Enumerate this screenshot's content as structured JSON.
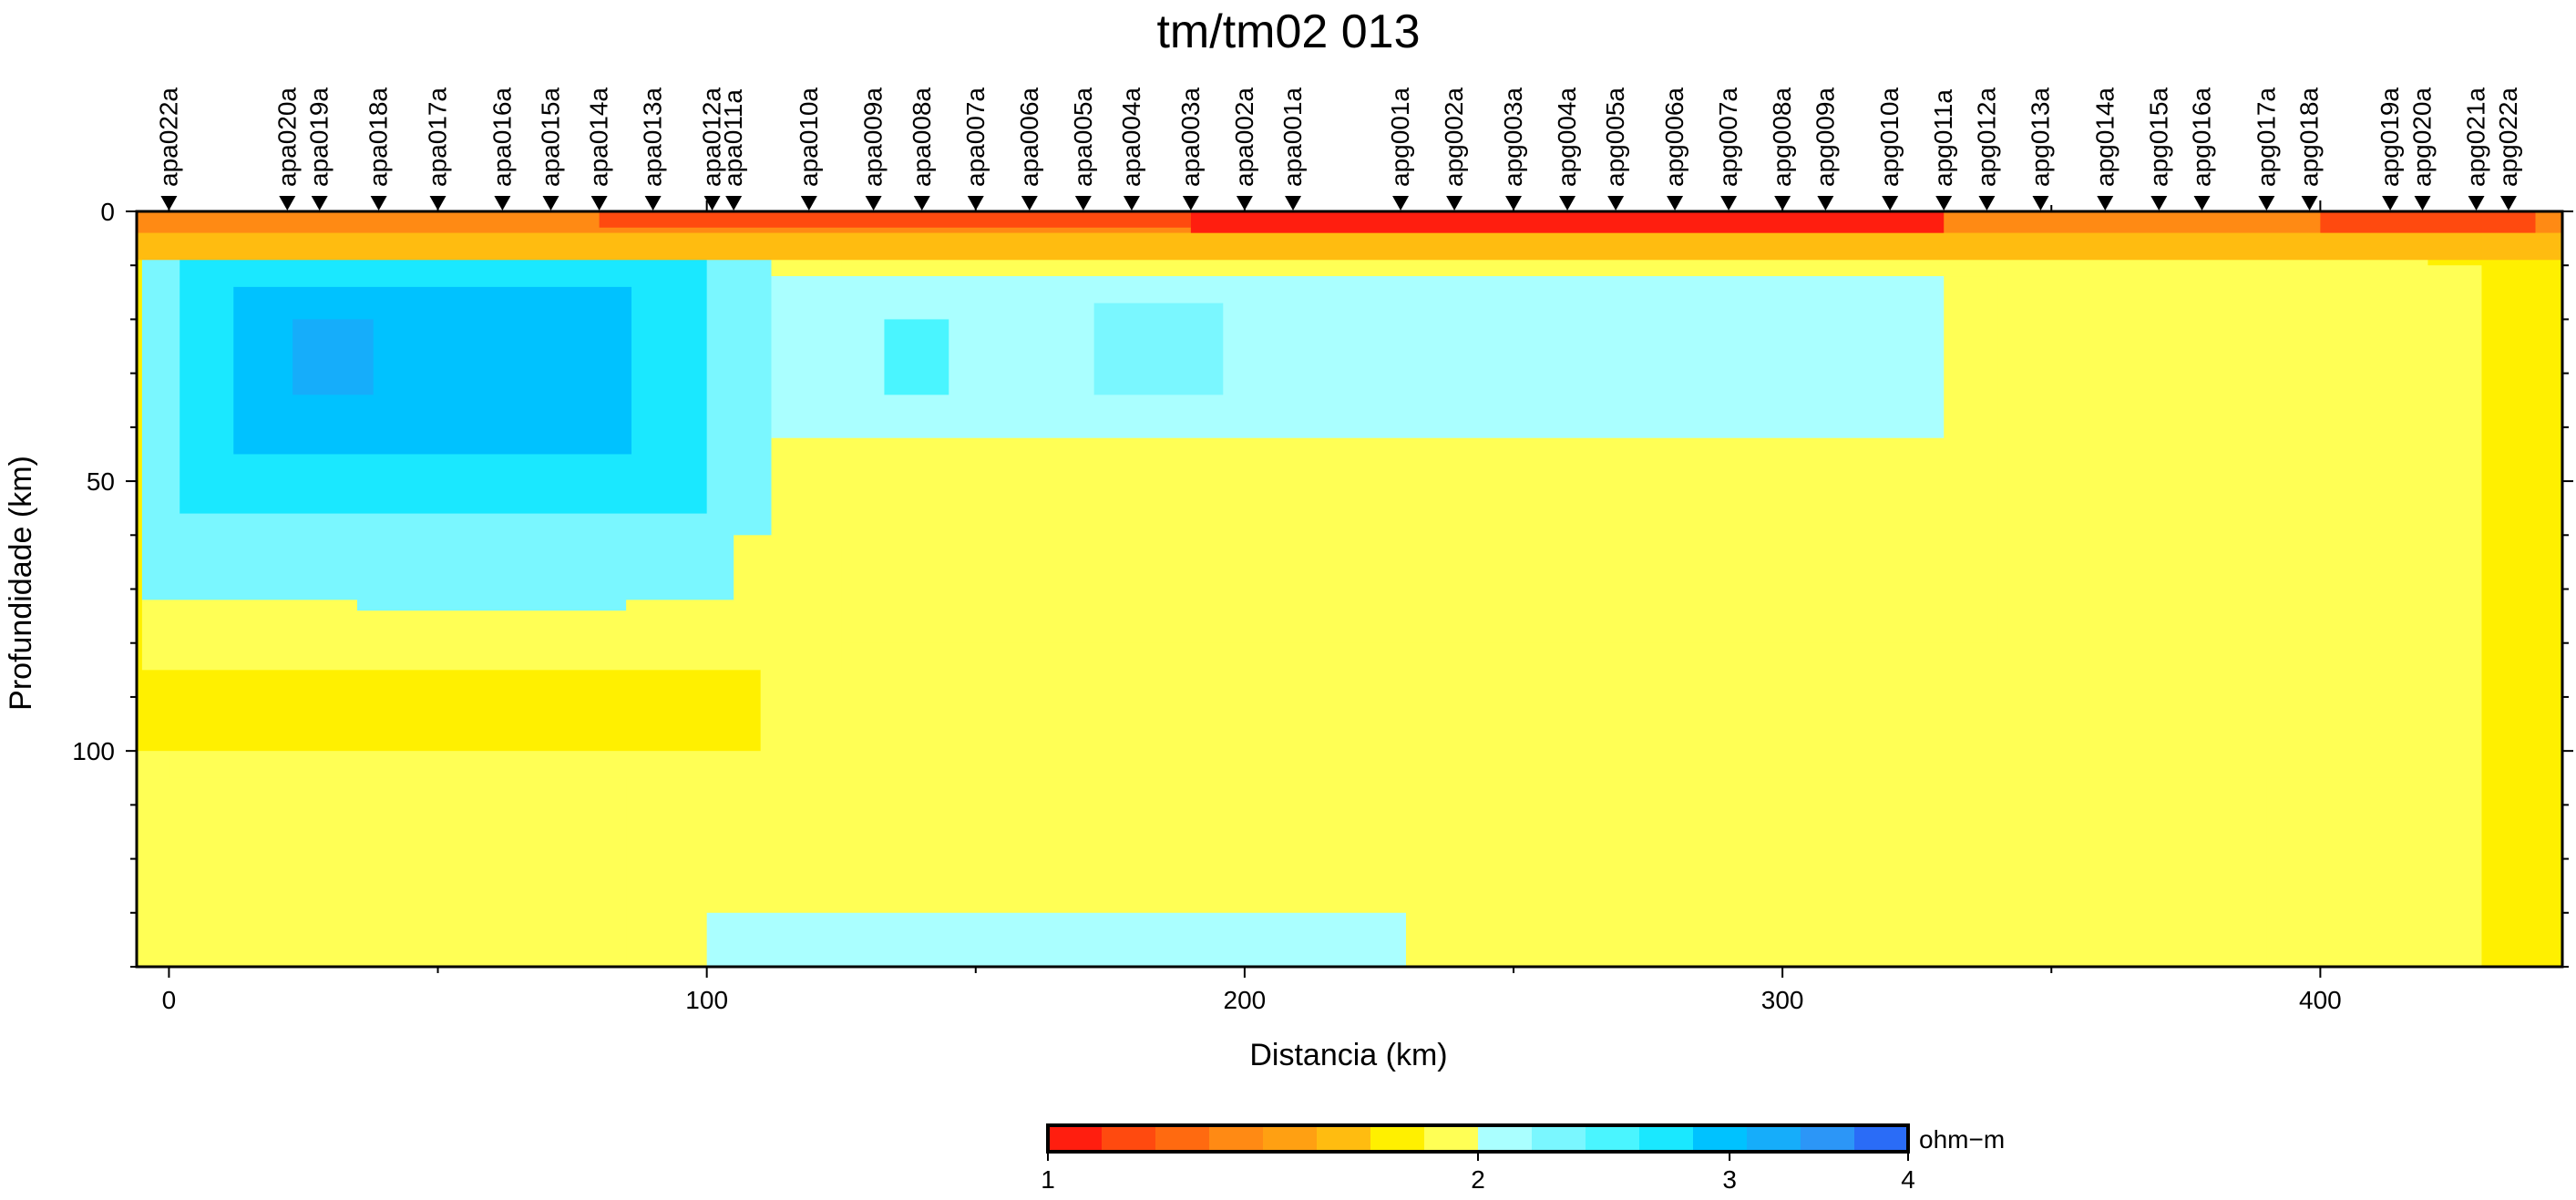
{
  "chart_data": {
    "type": "heatmap",
    "title": "tm/tm02 013",
    "xlabel": "Distancia (km)",
    "ylabel": "Profundidade (km)",
    "xlim": [
      -6,
      445
    ],
    "ylim": [
      140,
      0
    ],
    "x_ticks": [
      0,
      100,
      200,
      300,
      400
    ],
    "y_ticks": [
      0,
      50,
      100
    ],
    "colorbar": {
      "unit": "ohm−m",
      "range": [
        1,
        4
      ],
      "ticks": [
        1,
        2,
        3,
        4
      ],
      "colors": [
        "#ff1e0f",
        "#ff4a0f",
        "#ff6a10",
        "#ff8a14",
        "#ffa012",
        "#ffbc10",
        "#fff000",
        "#ffff55",
        "#aaffff",
        "#7af7ff",
        "#4af5ff",
        "#1ae8ff",
        "#00c2ff",
        "#16adfa",
        "#2c96f7",
        "#2a6cf7"
      ]
    },
    "stations": [
      {
        "name": "apa022a",
        "x": 0
      },
      {
        "name": "apa020a",
        "x": 22
      },
      {
        "name": "apa019a",
        "x": 28
      },
      {
        "name": "apa018a",
        "x": 39
      },
      {
        "name": "apa017a",
        "x": 50
      },
      {
        "name": "apa016a",
        "x": 62
      },
      {
        "name": "apa015a",
        "x": 71
      },
      {
        "name": "apa014a",
        "x": 80
      },
      {
        "name": "apa013a",
        "x": 90
      },
      {
        "name": "apa012a",
        "x": 101
      },
      {
        "name": "apa011a",
        "x": 105
      },
      {
        "name": "apa010a",
        "x": 119
      },
      {
        "name": "apa009a",
        "x": 131
      },
      {
        "name": "apa008a",
        "x": 140
      },
      {
        "name": "apa007a",
        "x": 150
      },
      {
        "name": "apa006a",
        "x": 160
      },
      {
        "name": "apa005a",
        "x": 170
      },
      {
        "name": "apa004a",
        "x": 179
      },
      {
        "name": "apa003a",
        "x": 190
      },
      {
        "name": "apa002a",
        "x": 200
      },
      {
        "name": "apa001a",
        "x": 209
      },
      {
        "name": "apg001a",
        "x": 229
      },
      {
        "name": "apg002a",
        "x": 239
      },
      {
        "name": "apg003a",
        "x": 250
      },
      {
        "name": "apg004a",
        "x": 260
      },
      {
        "name": "apg005a",
        "x": 269
      },
      {
        "name": "apg006a",
        "x": 280
      },
      {
        "name": "apg007a",
        "x": 290
      },
      {
        "name": "apg008a",
        "x": 300
      },
      {
        "name": "apg009a",
        "x": 308
      },
      {
        "name": "apg010a",
        "x": 320
      },
      {
        "name": "apg011a",
        "x": 330
      },
      {
        "name": "apg012a",
        "x": 338
      },
      {
        "name": "apg013a",
        "x": 348
      },
      {
        "name": "apg014a",
        "x": 360
      },
      {
        "name": "apg015a",
        "x": 370
      },
      {
        "name": "apg016a",
        "x": 378
      },
      {
        "name": "apg017a",
        "x": 390
      },
      {
        "name": "apg018a",
        "x": 398
      },
      {
        "name": "apg019a",
        "x": 413
      },
      {
        "name": "apg020a",
        "x": 419
      },
      {
        "name": "apg021a",
        "x": 429
      },
      {
        "name": "apg022a",
        "x": 435
      }
    ],
    "surface_layer": [
      {
        "x0": -6,
        "x1": 445,
        "y0": 0,
        "y1": 4,
        "log10_rho": 0.13
      },
      {
        "x0": 80,
        "x1": 190,
        "y0": 0,
        "y1": 3,
        "log10_rho": 0.05
      },
      {
        "x0": 190,
        "x1": 330,
        "y0": 0,
        "y1": 5,
        "log10_rho": 0.03
      },
      {
        "x0": 400,
        "x1": 440,
        "y0": 0,
        "y1": 4,
        "log10_rho": 0.05
      },
      {
        "x0": -6,
        "x1": 445,
        "y0": 4,
        "y1": 9,
        "log10_rho": 0.19
      }
    ],
    "regions": [
      {
        "x0": -6,
        "x1": 445,
        "y0": 0,
        "y1": 140,
        "log10_rho": 0.22
      },
      {
        "x0": -6,
        "x1": 445,
        "y0": 5,
        "y1": 140,
        "log10_rho": 0.26
      },
      {
        "x0": -6,
        "x1": 430,
        "y0": 10,
        "y1": 140,
        "log10_rho": 0.28
      },
      {
        "x0": 85,
        "x1": 390,
        "y0": 105,
        "y1": 140,
        "log10_rho": 0.3
      },
      {
        "x0": 100,
        "x1": 230,
        "y0": 130,
        "y1": 140,
        "log10_rho": 0.32
      },
      {
        "x0": 0,
        "x1": 420,
        "y0": 5,
        "y1": 105,
        "log10_rho": 0.28
      },
      {
        "x0": -6,
        "x1": 110,
        "y0": 5,
        "y1": 100,
        "log10_rho": 0.26
      },
      {
        "x0": 40,
        "x1": 340,
        "y0": 10,
        "y1": 80,
        "log10_rho": 0.28
      },
      {
        "x0": -5,
        "x1": 125,
        "y0": 5,
        "y1": 85,
        "log10_rho": 0.3
      },
      {
        "x0": 80,
        "x1": 340,
        "y0": 12,
        "y1": 62,
        "log10_rho": 0.3
      },
      {
        "x0": 100,
        "x1": 330,
        "y0": 12,
        "y1": 42,
        "log10_rho": 0.33
      },
      {
        "x0": -5,
        "x1": 105,
        "y0": 6,
        "y1": 72,
        "log10_rho": 0.34
      },
      {
        "x0": 35,
        "x1": 85,
        "y0": 60,
        "y1": 74,
        "log10_rho": 0.36
      },
      {
        "x0": -4,
        "x1": 112,
        "y0": 8,
        "y1": 60,
        "log10_rho": 0.37
      },
      {
        "x0": 2,
        "x1": 100,
        "y0": 8,
        "y1": 56,
        "log10_rho": 0.42
      },
      {
        "x0": 7,
        "x1": 95,
        "y0": 10,
        "y1": 52,
        "log10_rho": 0.44
      },
      {
        "x0": 12,
        "x1": 86,
        "y0": 14,
        "y1": 45,
        "log10_rho": 0.47
      },
      {
        "x0": 23,
        "x1": 38,
        "y0": 20,
        "y1": 34,
        "log10_rho": 0.5
      },
      {
        "x0": 133,
        "x1": 145,
        "y0": 20,
        "y1": 34,
        "log10_rho": 0.38
      },
      {
        "x0": 172,
        "x1": 196,
        "y0": 17,
        "y1": 34,
        "log10_rho": 0.37
      }
    ]
  }
}
